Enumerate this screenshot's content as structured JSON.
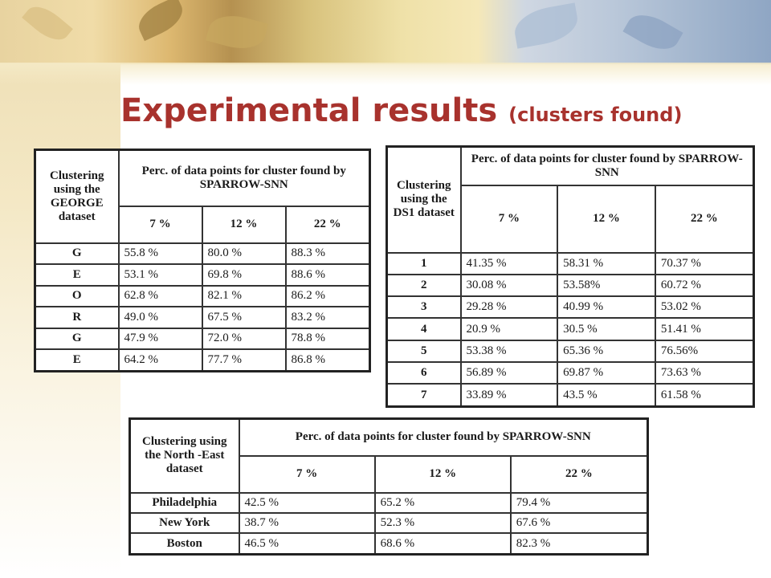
{
  "title": {
    "main": "Experimental results",
    "sub": "(clusters found)"
  },
  "table_george": {
    "corner": "Clustering using the GEORGE dataset",
    "span_header": "Perc. of data points for cluster found by SPARROW-SNN",
    "columns": [
      "7 %",
      "12 %",
      "22 %"
    ],
    "rows": [
      {
        "label": "G",
        "values": [
          "55.8 %",
          "80.0 %",
          "88.3 %"
        ]
      },
      {
        "label": "E",
        "values": [
          "53.1 %",
          "69.8 %",
          "88.6 %"
        ]
      },
      {
        "label": "O",
        "values": [
          "62.8 %",
          "82.1 %",
          "86.2 %"
        ]
      },
      {
        "label": "R",
        "values": [
          "49.0 %",
          "67.5 %",
          "83.2 %"
        ]
      },
      {
        "label": "G",
        "values": [
          "47.9 %",
          "72.0 %",
          "78.8 %"
        ]
      },
      {
        "label": "E",
        "values": [
          "64.2 %",
          "77.7 %",
          "86.8 %"
        ]
      }
    ]
  },
  "table_ds1": {
    "corner": "Clustering using the DS1 dataset",
    "span_header": "Perc. of data points for cluster found by SPARROW-SNN",
    "columns": [
      "7 %",
      "12 %",
      "22 %"
    ],
    "rows": [
      {
        "label": "1",
        "values": [
          "41.35 %",
          "58.31 %",
          "70.37 %"
        ]
      },
      {
        "label": "2",
        "values": [
          "30.08 %",
          "53.58%",
          "60.72 %"
        ]
      },
      {
        "label": "3",
        "values": [
          "29.28 %",
          "40.99 %",
          "53.02 %"
        ]
      },
      {
        "label": "4",
        "values": [
          "20.9 %",
          "30.5 %",
          "51.41 %"
        ]
      },
      {
        "label": "5",
        "values": [
          "53.38 %",
          "65.36 %",
          "76.56%"
        ]
      },
      {
        "label": "6",
        "values": [
          "56.89 %",
          "69.87 %",
          "73.63 %"
        ]
      },
      {
        "label": "7",
        "values": [
          "33.89 %",
          "43.5 %",
          "61.58 %"
        ]
      }
    ]
  },
  "table_northeast": {
    "corner": "Clustering using the North -East dataset",
    "span_header": "Perc. of data points for cluster found by SPARROW-SNN",
    "columns": [
      "7 %",
      "12 %",
      "22 %"
    ],
    "rows": [
      {
        "label": "Philadelphia",
        "values": [
          "42.5 %",
          "65.2 %",
          "79.4 %"
        ]
      },
      {
        "label": "New York",
        "values": [
          "38.7 %",
          "52.3 %",
          "67.6 %"
        ]
      },
      {
        "label": "Boston",
        "values": [
          "46.5 %",
          "68.6 %",
          "82.3 %"
        ]
      }
    ]
  },
  "colors": {
    "title": "#a8322d",
    "table_border": "#222222"
  }
}
